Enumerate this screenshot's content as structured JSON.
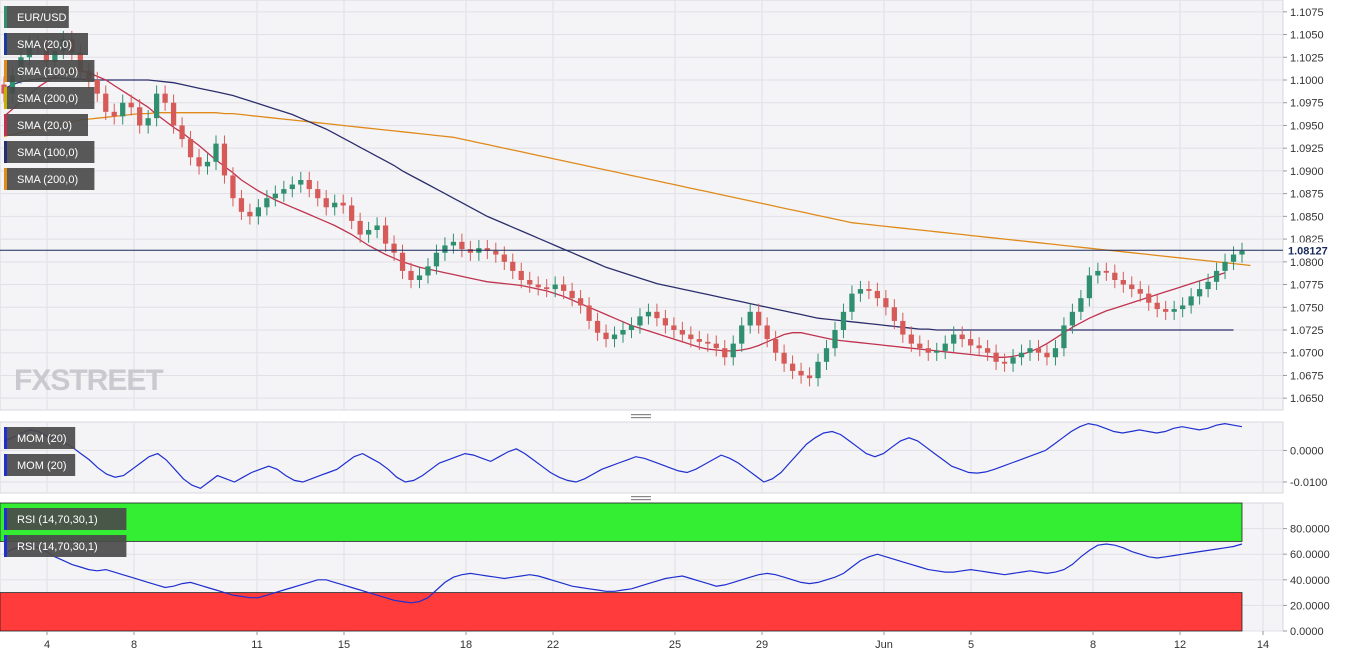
{
  "instrument": "EUR/USD",
  "watermark": "FXSTREET",
  "colors": {
    "candle_up": "#2f8f6f",
    "candle_down": "#d65a58",
    "sma20": "#c0334f",
    "sma100": "#2b2e6c",
    "sma200": "#e08a1a",
    "osc_line": "#1f2fd0",
    "rsi_overbought_fill": "#33ee33",
    "rsi_oversold_fill": "#ff3b3b",
    "price_line": "#1b2a5c",
    "legend_bg": "#4a4a4a"
  },
  "legends": {
    "main": [
      {
        "label": "EUR/USD",
        "swatch": "#2f8f6f"
      },
      {
        "label": "SMA (20,0)",
        "swatch": "#1a3aa0"
      },
      {
        "label": "SMA (100,0)",
        "swatch": "#e08a1a"
      },
      {
        "label": "SMA (200,0)",
        "swatch": "#c8b000"
      },
      {
        "label": "SMA (20,0)",
        "swatch": "#c0334f"
      },
      {
        "label": "SMA (100,0)",
        "swatch": "#2b2e6c"
      },
      {
        "label": "SMA (200,0)",
        "swatch": "#e08a1a"
      }
    ],
    "mom": [
      {
        "label": "MOM (20)",
        "swatch": "#1f2fd0"
      },
      {
        "label": "MOM (20)",
        "swatch": "#1f2fd0"
      }
    ],
    "rsi": [
      {
        "label": "RSI (14,70,30,1)",
        "swatch": "#1f2fd0"
      },
      {
        "label": "RSI (14,70,30,1)",
        "swatch": "#1f2fd0"
      }
    ]
  },
  "current_price_label": "1.08127",
  "chart_data": [
    {
      "type": "candlestick",
      "title": "",
      "series_name": "EUR/USD",
      "y_ticks": [
        "1.1075",
        "1.1050",
        "1.1025",
        "1.1000",
        "1.0975",
        "1.0950",
        "1.0925",
        "1.0900",
        "1.0875",
        "1.0850",
        "1.0825",
        "1.0800",
        "1.0775",
        "1.0750",
        "1.0725",
        "1.0700",
        "1.0675",
        "1.0650"
      ],
      "ylim": [
        1.0637,
        1.1088
      ],
      "x_ticks": [
        "4",
        "8",
        "11",
        "15",
        "18",
        "22",
        "25",
        "29",
        "Jun",
        "5",
        "8",
        "12",
        "14"
      ],
      "current_price": 1.08127,
      "closes": [
        1.0985,
        1.1005,
        1.1025,
        1.104,
        1.1038,
        1.102,
        1.1032,
        1.1045,
        1.103,
        1.101,
        1.1,
        1.0985,
        1.0965,
        1.096,
        1.0975,
        1.097,
        1.095,
        1.0958,
        1.0985,
        1.0975,
        1.095,
        1.0935,
        1.0915,
        1.0905,
        1.091,
        1.093,
        1.0895,
        1.087,
        1.0855,
        1.085,
        1.086,
        1.087,
        1.0875,
        1.088,
        1.0885,
        1.089,
        1.088,
        1.087,
        1.086,
        1.0865,
        1.0862,
        1.0845,
        1.083,
        1.0835,
        1.084,
        1.082,
        1.081,
        1.079,
        1.078,
        1.0785,
        1.0795,
        1.081,
        1.0818,
        1.0822,
        1.0814,
        1.081,
        1.0815,
        1.0812,
        1.0808,
        1.08,
        1.079,
        1.078,
        1.0775,
        1.0772,
        1.077,
        1.0775,
        1.0768,
        1.076,
        1.0752,
        1.0735,
        1.0722,
        1.0715,
        1.072,
        1.0725,
        1.073,
        1.074,
        1.0745,
        1.0738,
        1.073,
        1.0725,
        1.072,
        1.0715,
        1.0712,
        1.071,
        1.0705,
        1.0695,
        1.071,
        1.073,
        1.0745,
        1.073,
        1.0715,
        1.07,
        1.0688,
        1.068,
        1.0675,
        1.0672,
        1.069,
        1.0705,
        1.0725,
        1.0745,
        1.0765,
        1.077,
        1.0768,
        1.076,
        1.075,
        1.0735,
        1.072,
        1.071,
        1.0705,
        1.07,
        1.0702,
        1.071,
        1.072,
        1.0715,
        1.0708,
        1.0705,
        1.07,
        1.069,
        1.0688,
        1.0695,
        1.07,
        1.0705,
        1.07,
        1.0695,
        1.0705,
        1.073,
        1.0745,
        1.076,
        1.0785,
        1.079,
        1.0788,
        1.078,
        1.0775,
        1.077,
        1.0765,
        1.0755,
        1.0748,
        1.0745,
        1.0748,
        1.0752,
        1.0762,
        1.077,
        1.0778,
        1.079,
        1.08,
        1.0808,
        1.0812
      ],
      "sma20": [
        1.096,
        1.0968,
        1.0976,
        1.0984,
        1.0992,
        1.0998,
        1.1004,
        1.1008,
        1.101,
        1.101,
        1.1008,
        1.1004,
        1.1,
        1.0994,
        1.0988,
        1.0982,
        1.0976,
        1.097,
        1.0962,
        1.0955,
        1.0948,
        1.0942,
        1.0935,
        1.0928,
        1.092,
        1.0912,
        1.0905,
        1.0898,
        1.089,
        1.0884,
        1.0878,
        1.0873,
        1.0868,
        1.0864,
        1.086,
        1.0856,
        1.0852,
        1.0848,
        1.0844,
        1.084,
        1.0835,
        1.083,
        1.0824,
        1.0818,
        1.0813,
        1.0808,
        1.0804,
        1.08,
        1.0797,
        1.0794,
        1.0792,
        1.079,
        1.0788,
        1.0786,
        1.0784,
        1.0782,
        1.078,
        1.0778,
        1.0777,
        1.0776,
        1.0775,
        1.0774,
        1.0772,
        1.077,
        1.0768,
        1.0765,
        1.0762,
        1.0758,
        1.0754,
        1.075,
        1.0746,
        1.0742,
        1.0738,
        1.0734,
        1.073,
        1.0727,
        1.0724,
        1.0721,
        1.0718,
        1.0715,
        1.0712,
        1.0709,
        1.0706,
        1.0704,
        1.0703,
        1.0702,
        1.0702,
        1.0703,
        1.0705,
        1.0708,
        1.0712,
        1.0716,
        1.072,
        1.0722,
        1.0722,
        1.072,
        1.0718,
        1.0716,
        1.0714,
        1.0713,
        1.0712,
        1.0711,
        1.071,
        1.0709,
        1.0708,
        1.0707,
        1.0706,
        1.0705,
        1.0704,
        1.0703,
        1.0702,
        1.0701,
        1.07,
        1.0699,
        1.0698,
        1.0697,
        1.0696,
        1.0695,
        1.0695,
        1.0696,
        1.0698,
        1.0701,
        1.0705,
        1.071,
        1.0716,
        1.0722,
        1.0728,
        1.0733,
        1.0738,
        1.0742,
        1.0746,
        1.0749,
        1.0752,
        1.0755,
        1.0758,
        1.0761,
        1.0764,
        1.0767,
        1.077,
        1.0773,
        1.0776,
        1.0779,
        1.0782,
        1.0785,
        1.0788
      ],
      "sma100": [
        1.099,
        1.0995,
        1.0998,
        1.1,
        1.1001,
        1.1002,
        1.1002,
        1.1002,
        1.1001,
        1.1001,
        1.1,
        1.1,
        1.1,
        1.1,
        1.1,
        1.1,
        1.1,
        1.1,
        1.0999,
        1.0998,
        1.0997,
        1.0995,
        1.0993,
        1.0991,
        1.0989,
        1.0987,
        1.0985,
        1.0983,
        1.098,
        1.0977,
        1.0974,
        1.0971,
        1.0968,
        1.0965,
        1.0962,
        1.0958,
        1.0954,
        1.095,
        1.0946,
        1.0941,
        1.0936,
        1.0931,
        1.0926,
        1.0921,
        1.0916,
        1.0911,
        1.0906,
        1.09,
        1.0895,
        1.089,
        1.0885,
        1.088,
        1.0875,
        1.087,
        1.0865,
        1.086,
        1.0855,
        1.085,
        1.0846,
        1.0842,
        1.0838,
        1.0834,
        1.083,
        1.0826,
        1.0822,
        1.0818,
        1.0814,
        1.081,
        1.0806,
        1.0802,
        1.0798,
        1.0794,
        1.0791,
        1.0788,
        1.0785,
        1.0782,
        1.0779,
        1.0776,
        1.0774,
        1.0772,
        1.077,
        1.0768,
        1.0766,
        1.0764,
        1.0762,
        1.076,
        1.0758,
        1.0756,
        1.0754,
        1.0752,
        1.075,
        1.0748,
        1.0746,
        1.0744,
        1.0742,
        1.074,
        1.0738,
        1.0737,
        1.0736,
        1.0735,
        1.0734,
        1.0733,
        1.0732,
        1.0731,
        1.073,
        1.0729,
        1.0728,
        1.0727,
        1.0726,
        1.0726,
        1.0725,
        1.0725,
        1.0725,
        1.0725,
        1.0725,
        1.0725,
        1.0725,
        1.0725,
        1.0725,
        1.0725,
        1.0725,
        1.0725,
        1.0725,
        1.0725,
        1.0725,
        1.0725,
        1.0725,
        1.0725,
        1.0725,
        1.0725,
        1.0725,
        1.0725,
        1.0725,
        1.0725,
        1.0725,
        1.0725,
        1.0725,
        1.0725,
        1.0725,
        1.0725,
        1.0725,
        1.0725,
        1.0725,
        1.0725,
        1.0725,
        1.0725
      ],
      "sma200": [
        1.0938,
        1.094,
        1.0942,
        1.0944,
        1.0946,
        1.0948,
        1.095,
        1.0952,
        1.0954,
        1.0956,
        1.0957,
        1.0958,
        1.0959,
        1.096,
        1.0961,
        1.0962,
        1.0963,
        1.0963,
        1.0964,
        1.0964,
        1.0964,
        1.0964,
        1.0964,
        1.0964,
        1.0964,
        1.0964,
        1.0963,
        1.0963,
        1.0962,
        1.0961,
        1.096,
        1.0959,
        1.0958,
        1.0957,
        1.0956,
        1.0955,
        1.0954,
        1.0953,
        1.0952,
        1.0951,
        1.095,
        1.0949,
        1.0948,
        1.0947,
        1.0946,
        1.0945,
        1.0944,
        1.0943,
        1.0942,
        1.0941,
        1.094,
        1.0939,
        1.0938,
        1.0937,
        1.0935,
        1.0933,
        1.0931,
        1.0929,
        1.0927,
        1.0925,
        1.0923,
        1.0921,
        1.0919,
        1.0917,
        1.0915,
        1.0913,
        1.0911,
        1.0909,
        1.0907,
        1.0905,
        1.0903,
        1.0901,
        1.0899,
        1.0897,
        1.0895,
        1.0893,
        1.0891,
        1.0889,
        1.0887,
        1.0885,
        1.0883,
        1.0881,
        1.0879,
        1.0877,
        1.0875,
        1.0873,
        1.0871,
        1.0869,
        1.0867,
        1.0865,
        1.0863,
        1.0861,
        1.0859,
        1.0857,
        1.0855,
        1.0853,
        1.0851,
        1.0849,
        1.0847,
        1.0845,
        1.0843,
        1.0842,
        1.0841,
        1.084,
        1.0839,
        1.0838,
        1.0837,
        1.0836,
        1.0835,
        1.0834,
        1.0833,
        1.0832,
        1.0831,
        1.083,
        1.0829,
        1.0828,
        1.0827,
        1.0826,
        1.0825,
        1.0824,
        1.0823,
        1.0822,
        1.0821,
        1.082,
        1.0819,
        1.0818,
        1.0817,
        1.0816,
        1.0815,
        1.0814,
        1.0813,
        1.0812,
        1.0811,
        1.081,
        1.0809,
        1.0808,
        1.0807,
        1.0806,
        1.0805,
        1.0804,
        1.0803,
        1.0802,
        1.0801,
        1.08,
        1.0799,
        1.0798,
        1.0797,
        1.0796
      ]
    },
    {
      "type": "line",
      "title": "",
      "series_name": "MOM (20)",
      "y_ticks": [
        "0.0000",
        "-0.0100"
      ],
      "ylim": [
        -0.0135,
        0.009
      ],
      "values": [
        0.003,
        0.004,
        0.0055,
        0.0065,
        0.006,
        0.0045,
        0.0035,
        0.0025,
        0.001,
        -0.001,
        -0.003,
        -0.0055,
        -0.0075,
        -0.0085,
        -0.008,
        -0.006,
        -0.004,
        -0.002,
        -0.001,
        -0.003,
        -0.006,
        -0.009,
        -0.011,
        -0.012,
        -0.01,
        -0.008,
        -0.009,
        -0.01,
        -0.0085,
        -0.007,
        -0.006,
        -0.005,
        -0.006,
        -0.008,
        -0.0095,
        -0.01,
        -0.009,
        -0.008,
        -0.007,
        -0.006,
        -0.004,
        -0.002,
        -0.001,
        -0.0025,
        -0.004,
        -0.006,
        -0.0085,
        -0.01,
        -0.0095,
        -0.008,
        -0.006,
        -0.004,
        -0.003,
        -0.002,
        -0.001,
        -0.0015,
        -0.0025,
        -0.0035,
        -0.002,
        -0.0005,
        0.0005,
        -0.001,
        -0.003,
        -0.005,
        -0.007,
        -0.0085,
        -0.0095,
        -0.01,
        -0.009,
        -0.0075,
        -0.006,
        -0.005,
        -0.004,
        -0.003,
        -0.002,
        -0.0025,
        -0.0035,
        -0.0045,
        -0.0055,
        -0.0065,
        -0.007,
        -0.006,
        -0.0045,
        -0.003,
        -0.0015,
        -0.0025,
        -0.004,
        -0.006,
        -0.008,
        -0.01,
        -0.009,
        -0.007,
        -0.004,
        -0.001,
        0.002,
        0.004,
        0.0055,
        0.006,
        0.005,
        0.003,
        0.001,
        -0.001,
        -0.002,
        -0.001,
        0.001,
        0.003,
        0.004,
        0.003,
        0.001,
        -0.001,
        -0.003,
        -0.005,
        -0.006,
        -0.007,
        -0.0072,
        -0.0068,
        -0.006,
        -0.005,
        -0.004,
        -0.003,
        -0.002,
        -0.001,
        0.0,
        0.002,
        0.004,
        0.006,
        0.0075,
        0.0085,
        0.008,
        0.007,
        0.006,
        0.0055,
        0.006,
        0.0065,
        0.006,
        0.0055,
        0.006,
        0.007,
        0.0075,
        0.007,
        0.0065,
        0.007,
        0.008,
        0.0085,
        0.008,
        0.0075
      ]
    },
    {
      "type": "line",
      "title": "",
      "series_name": "RSI (14,70,30,1)",
      "y_ticks": [
        "80.0000",
        "60.0000",
        "40.0000",
        "20.0000",
        "0.0000"
      ],
      "ylim": [
        0,
        100
      ],
      "bands": {
        "overbought": 70,
        "oversold": 30
      },
      "values": [
        60,
        64,
        66,
        67,
        65,
        62,
        58,
        55,
        52,
        50,
        48,
        47,
        48,
        46,
        44,
        42,
        40,
        38,
        36,
        34,
        35,
        37,
        38,
        36,
        34,
        32,
        30,
        28,
        27,
        26,
        26,
        28,
        30,
        32,
        34,
        36,
        38,
        40,
        40,
        38,
        36,
        34,
        32,
        30,
        28,
        26,
        24,
        23,
        22,
        23,
        26,
        32,
        38,
        42,
        44,
        45,
        44,
        43,
        42,
        41,
        42,
        43,
        44,
        43,
        41,
        39,
        37,
        35,
        34,
        33,
        32,
        31,
        31,
        32,
        33,
        35,
        37,
        39,
        41,
        42,
        43,
        41,
        39,
        37,
        35,
        36,
        38,
        40,
        42,
        44,
        45,
        44,
        42,
        40,
        38,
        37,
        38,
        40,
        42,
        45,
        50,
        55,
        58,
        60,
        58,
        56,
        54,
        52,
        50,
        48,
        47,
        46,
        46,
        47,
        48,
        47,
        46,
        45,
        44,
        45,
        46,
        47,
        46,
        45,
        46,
        48,
        52,
        58,
        63,
        67,
        68,
        67,
        65,
        62,
        60,
        58,
        57,
        58,
        59,
        60,
        61,
        62,
        63,
        64,
        65,
        66,
        68
      ]
    }
  ]
}
